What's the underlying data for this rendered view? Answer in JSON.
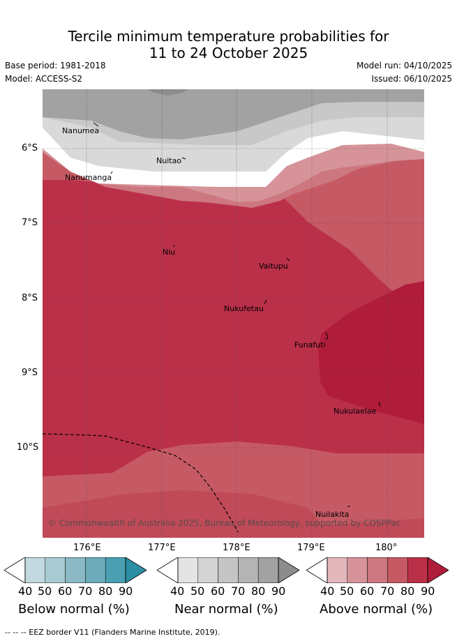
{
  "title": {
    "line1": "Tercile minimum temperature probabilities for",
    "line2": "11 to 24 October 2025"
  },
  "meta": {
    "base_period": "Base period: 1981-2018",
    "model": "Model: ACCESS-S2",
    "model_run": "Model run: 04/10/2025",
    "issued": "Issued: 06/10/2025"
  },
  "map": {
    "lon_ticks": [
      "176°E",
      "177°E",
      "178°E",
      "179°E",
      "180°"
    ],
    "lat_ticks": [
      "6°S",
      "7°S",
      "8°S",
      "9°S",
      "10°S"
    ],
    "islands": [
      "Nanumea",
      "Nuitao",
      "Nanumanga",
      "Niu",
      "Vaitupu",
      "Nukufetau",
      "Funafuti",
      "Nukulaelae",
      "Nuilakita"
    ],
    "copyright": "© Commonwealth of Australia 2025, Bureau of Meteorology, supported by COSPPac"
  },
  "colorbars": [
    {
      "title": "Below normal (%)",
      "ticks": [
        "40",
        "50",
        "60",
        "70",
        "80",
        "90"
      ],
      "colors": [
        "#c1d9df",
        "#a8cbd2",
        "#8bb9c5",
        "#6dabba",
        "#4aa0b2",
        "#2c8ea3"
      ]
    },
    {
      "title": "Near normal (%)",
      "ticks": [
        "40",
        "50",
        "60",
        "70",
        "80",
        "90"
      ],
      "colors": [
        "#e4e4e4",
        "#d4d4d4",
        "#c4c4c4",
        "#b4b4b4",
        "#a2a2a2",
        "#8c8c8c"
      ]
    },
    {
      "title": "Above normal (%)",
      "ticks": [
        "40",
        "50",
        "60",
        "70",
        "80",
        "90"
      ],
      "colors": [
        "#e2b7bc",
        "#d6949a",
        "#cd7880",
        "#c65a64",
        "#bb3049",
        "#b01d3b"
      ]
    }
  ],
  "footer": "--  --  -- EEZ border V11 (Flanders Marine Institute, 2019)."
}
